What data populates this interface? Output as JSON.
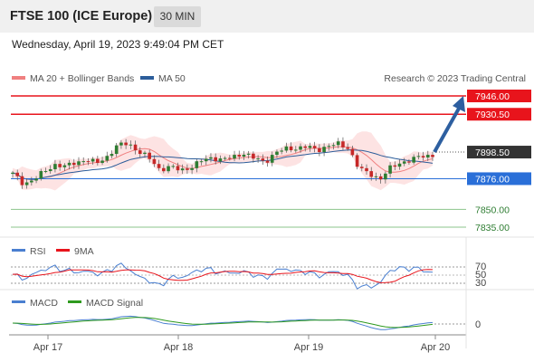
{
  "header": {
    "title": "FTSE 100 (ICE Europe)",
    "interval": "30 MIN"
  },
  "date_line": "Wednesday, April 19, 2023 9:49:04 PM CET",
  "legend": {
    "bollinger": "MA 20 + Bollinger Bands",
    "ma50": "MA 50",
    "credit": "Research © 2023 Trading Central"
  },
  "colors": {
    "resistance": "#e8141c",
    "support": "#2a6fd8",
    "target": "#2e7d32",
    "current": "#333333",
    "candle_up": "#2e7d32",
    "candle_down": "#c62828",
    "arrow": "#2d5fa0"
  },
  "chart_data": [
    {
      "type": "candlestick",
      "x_labels": [
        "Apr 17",
        "Apr 18",
        "Apr 19",
        "Apr 20"
      ],
      "price_levels": [
        {
          "label": "7946.00",
          "value": 7946.0,
          "kind": "resistance"
        },
        {
          "label": "7930.50",
          "value": 7930.5,
          "kind": "resistance"
        },
        {
          "label": "7898.50",
          "value": 7898.5,
          "kind": "current"
        },
        {
          "label": "7876.00",
          "value": 7876.0,
          "kind": "pivot"
        },
        {
          "label": "7850.00",
          "value": 7850.0,
          "kind": "support"
        },
        {
          "label": "7835.00",
          "value": 7835.0,
          "kind": "support"
        }
      ],
      "close_path": [
        7880,
        7872,
        7875,
        7882,
        7888,
        7886,
        7890,
        7892,
        7889,
        7895,
        7904,
        7906,
        7899,
        7893,
        7884,
        7886,
        7883,
        7886,
        7891,
        7894,
        7892,
        7894,
        7898,
        7893,
        7890,
        7898,
        7901,
        7902,
        7903,
        7900,
        7904,
        7905,
        7902,
        7884,
        7880,
        7876,
        7885,
        7890,
        7892,
        7895,
        7896
      ],
      "series": [
        {
          "name": "MA 20 + Bollinger Bands"
        },
        {
          "name": "MA 50"
        }
      ]
    },
    {
      "type": "line",
      "series": [
        {
          "name": "RSI"
        },
        {
          "name": "9MA"
        }
      ],
      "yticks": [
        "70",
        "50",
        "30"
      ]
    },
    {
      "type": "line",
      "series": [
        {
          "name": "MACD"
        },
        {
          "name": "MACD Signal"
        }
      ],
      "yticks": [
        "0"
      ]
    }
  ],
  "rsi_legend": {
    "rsi": "RSI",
    "ma9": "9MA"
  },
  "macd_legend": {
    "macd": "MACD",
    "signal": "MACD Signal"
  }
}
